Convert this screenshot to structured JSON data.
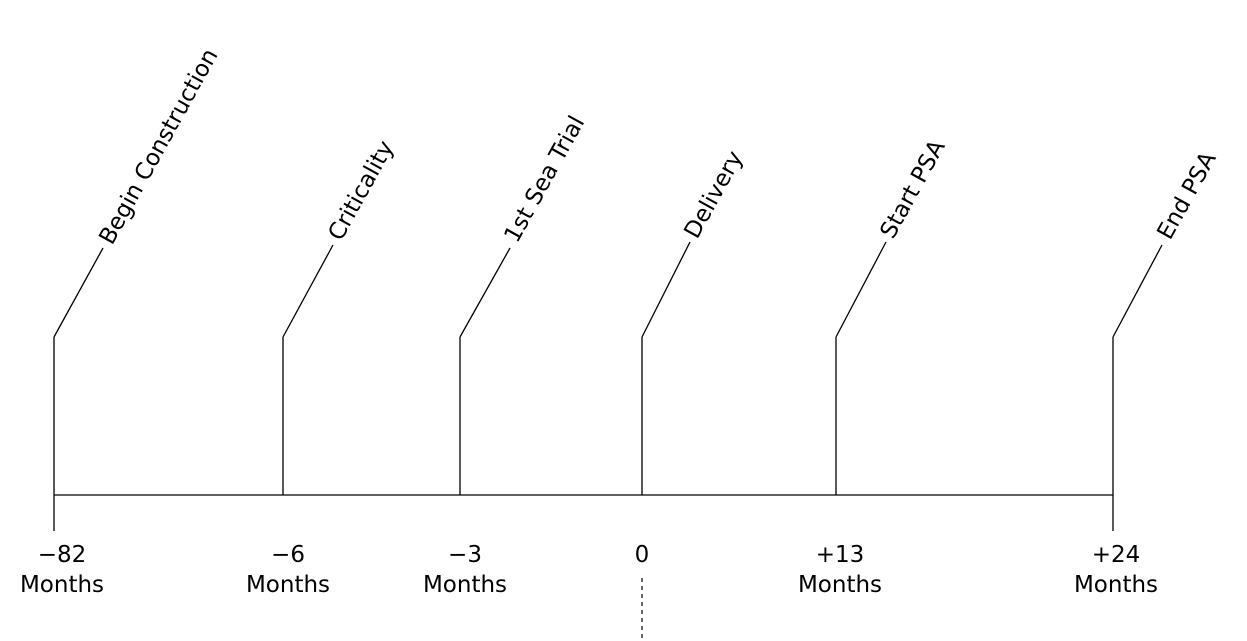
{
  "timeline": {
    "events": [
      {
        "label": "Begin Construction",
        "value": "−82",
        "unit": "Months"
      },
      {
        "label": "Criticality",
        "value": "−6",
        "unit": "Months"
      },
      {
        "label": "1st Sea Trial",
        "value": "−3",
        "unit": "Months"
      },
      {
        "label": "Delivery",
        "value": "0",
        "unit": ""
      },
      {
        "label": "Start PSA",
        "value": "+13",
        "unit": "Months"
      },
      {
        "label": "End PSA",
        "value": "+24",
        "unit": "Months"
      }
    ]
  }
}
